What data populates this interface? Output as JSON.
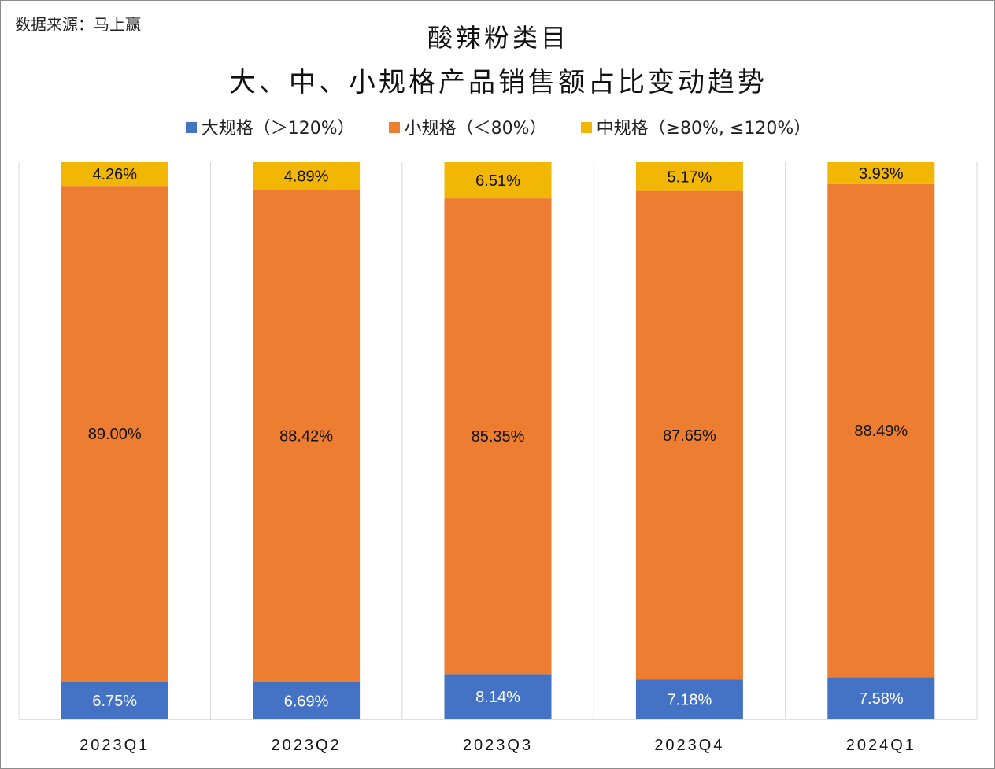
{
  "source_note": "数据来源：马上赢",
  "chart_data": {
    "type": "bar",
    "stacked": true,
    "normalized": true,
    "title": "酸辣粉类目",
    "subtitle": "大、中、小规格产品销售额占比变动趋势",
    "xlabel": "",
    "ylabel": "",
    "categories": [
      "2023Q1",
      "2023Q2",
      "2023Q3",
      "2023Q4",
      "2024Q1"
    ],
    "series": [
      {
        "name": "大规格（＞120%）",
        "color": "#4472c4",
        "values": [
          6.75,
          6.69,
          8.14,
          7.18,
          7.58
        ],
        "labels": [
          "6.75%",
          "6.69%",
          "8.14%",
          "7.18%",
          "7.58%"
        ]
      },
      {
        "name": "小规格（＜80%）",
        "color": "#ed7d31",
        "values": [
          89.0,
          88.42,
          85.35,
          87.65,
          88.49
        ],
        "labels": [
          "89.00%",
          "88.42%",
          "85.35%",
          "87.65%",
          "88.49%"
        ]
      },
      {
        "name": "中规格（≥80%, ≤120%）",
        "color": "#f2b705",
        "values": [
          4.26,
          4.89,
          6.51,
          5.17,
          3.93
        ],
        "labels": [
          "4.26%",
          "4.89%",
          "6.51%",
          "5.17%",
          "3.93%"
        ]
      }
    ],
    "legend_position": "top",
    "grid": false
  }
}
